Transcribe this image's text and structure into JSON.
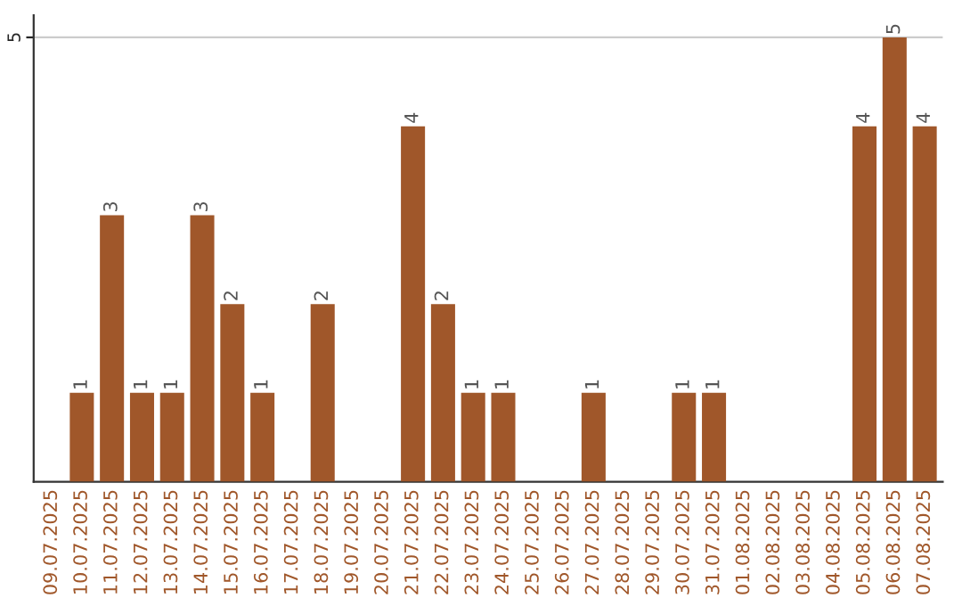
{
  "chart_data": {
    "type": "bar",
    "categories": [
      "09.07.2025",
      "10.07.2025",
      "11.07.2025",
      "12.07.2025",
      "13.07.2025",
      "14.07.2025",
      "15.07.2025",
      "16.07.2025",
      "17.07.2025",
      "18.07.2025",
      "19.07.2025",
      "20.07.2025",
      "21.07.2025",
      "22.07.2025",
      "23.07.2025",
      "24.07.2025",
      "25.07.2025",
      "26.07.2025",
      "27.07.2025",
      "28.07.2025",
      "29.07.2025",
      "30.07.2025",
      "31.07.2025",
      "01.08.2025",
      "02.08.2025",
      "03.08.2025",
      "04.08.2025",
      "05.08.2025",
      "06.08.2025",
      "07.08.2025"
    ],
    "values": [
      0,
      1,
      3,
      1,
      1,
      3,
      2,
      1,
      0,
      2,
      0,
      0,
      4,
      2,
      1,
      1,
      0,
      0,
      1,
      0,
      0,
      1,
      1,
      0,
      0,
      0,
      0,
      4,
      5,
      4
    ],
    "value_labels": [
      null,
      "1",
      "3",
      "1",
      "1",
      "3",
      "2",
      "1",
      null,
      "2",
      null,
      null,
      "4",
      "2",
      "1",
      "1",
      null,
      null,
      "1",
      null,
      null,
      "1",
      "1",
      null,
      null,
      null,
      null,
      "4",
      "5",
      "4"
    ],
    "color": "#a0572a",
    "ylim": [
      0,
      5.25
    ],
    "yticks": [
      5
    ],
    "grid": "y",
    "legend": false
  }
}
